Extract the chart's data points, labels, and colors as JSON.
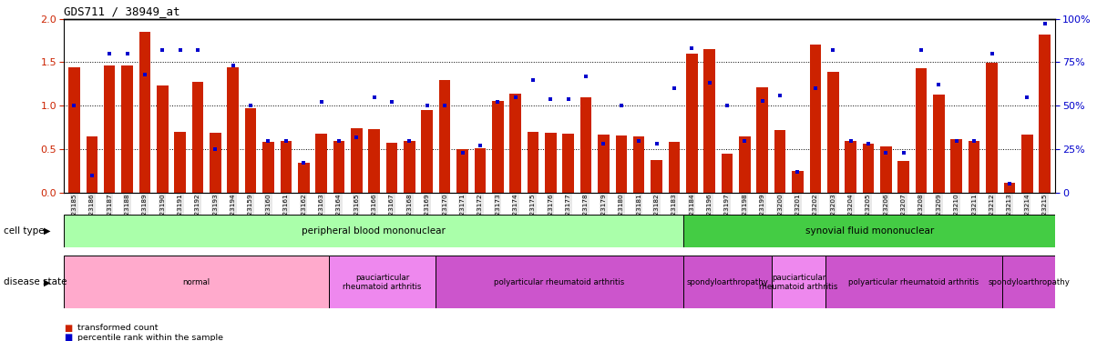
{
  "title": "GDS711 / 38949_at",
  "samples": [
    "GSM23185",
    "GSM23186",
    "GSM23187",
    "GSM23188",
    "GSM23189",
    "GSM23190",
    "GSM23191",
    "GSM23192",
    "GSM23193",
    "GSM23194",
    "GSM23159",
    "GSM23160",
    "GSM23161",
    "GSM23162",
    "GSM23163",
    "GSM23164",
    "GSM23165",
    "GSM23166",
    "GSM23167",
    "GSM23168",
    "GSM23169",
    "GSM23170",
    "GSM23171",
    "GSM23172",
    "GSM23173",
    "GSM23174",
    "GSM23175",
    "GSM23176",
    "GSM23177",
    "GSM23178",
    "GSM23179",
    "GSM23180",
    "GSM23181",
    "GSM23182",
    "GSM23183",
    "GSM23184",
    "GSM23196",
    "GSM23197",
    "GSM23198",
    "GSM23199",
    "GSM23200",
    "GSM23201",
    "GSM23202",
    "GSM23203",
    "GSM23204",
    "GSM23205",
    "GSM23206",
    "GSM23207",
    "GSM23208",
    "GSM23209",
    "GSM23210",
    "GSM23211",
    "GSM23212",
    "GSM23213",
    "GSM23214",
    "GSM23215"
  ],
  "bar_values": [
    1.44,
    0.65,
    1.46,
    1.46,
    1.85,
    1.23,
    0.7,
    1.27,
    0.69,
    1.44,
    0.97,
    0.58,
    0.6,
    0.34,
    0.68,
    0.59,
    0.74,
    0.73,
    0.57,
    0.6,
    0.95,
    1.3,
    0.5,
    0.51,
    1.05,
    1.14,
    0.7,
    0.69,
    0.68,
    1.1,
    0.67,
    0.66,
    0.65,
    0.38,
    0.58,
    1.6,
    1.65,
    0.45,
    0.65,
    1.21,
    0.72,
    0.25,
    1.7,
    1.39,
    0.6,
    0.56,
    0.53,
    0.36,
    1.43,
    1.13,
    0.62,
    0.6,
    1.49,
    0.11,
    0.67,
    1.82
  ],
  "percentile_values_pct": [
    50,
    10,
    80,
    80,
    68,
    82,
    82,
    82,
    25,
    73,
    50,
    30,
    30,
    17,
    52,
    30,
    32,
    55,
    52,
    30,
    50,
    50,
    23,
    27,
    52,
    55,
    65,
    54,
    54,
    67,
    28,
    50,
    30,
    28,
    60,
    83,
    63,
    50,
    30,
    53,
    56,
    12,
    60,
    82,
    30,
    28,
    23,
    23,
    82,
    62,
    30,
    30,
    80,
    5,
    55,
    97
  ],
  "bar_color": "#cc2200",
  "dot_color": "#0000cc",
  "ylim_left": [
    0,
    2.0
  ],
  "ylim_right": [
    0,
    100
  ],
  "yticks_left": [
    0,
    0.5,
    1.0,
    1.5,
    2.0
  ],
  "yticks_right": [
    0,
    25,
    50,
    75,
    100
  ],
  "hlines": [
    0.5,
    1.0,
    1.5
  ],
  "cell_type_regions": [
    {
      "label": "peripheral blood mononuclear",
      "start": 0,
      "end": 35,
      "color": "#aaffaa"
    },
    {
      "label": "synovial fluid mononuclear",
      "start": 35,
      "end": 56,
      "color": "#44cc44"
    }
  ],
  "disease_state_regions": [
    {
      "label": "normal",
      "start": 0,
      "end": 15,
      "color": "#ffaacc"
    },
    {
      "label": "pauciarticular\nrheumatoid arthritis",
      "start": 15,
      "end": 21,
      "color": "#ee88ee"
    },
    {
      "label": "polyarticular rheumatoid arthritis",
      "start": 21,
      "end": 35,
      "color": "#cc55cc"
    },
    {
      "label": "spondyloarthropathy",
      "start": 35,
      "end": 40,
      "color": "#cc55cc"
    },
    {
      "label": "pauciarticular\nrheumatoid arthritis",
      "start": 40,
      "end": 43,
      "color": "#ee88ee"
    },
    {
      "label": "polyarticular rheumatoid arthritis",
      "start": 43,
      "end": 53,
      "color": "#cc55cc"
    },
    {
      "label": "spondyloarthropathy",
      "start": 53,
      "end": 56,
      "color": "#cc55cc"
    }
  ],
  "cell_type_label": "cell type",
  "disease_state_label": "disease state",
  "legend_bar_label": "transformed count",
  "legend_dot_label": "percentile rank within the sample",
  "background_color": "#ffffff",
  "n_samples": 56
}
